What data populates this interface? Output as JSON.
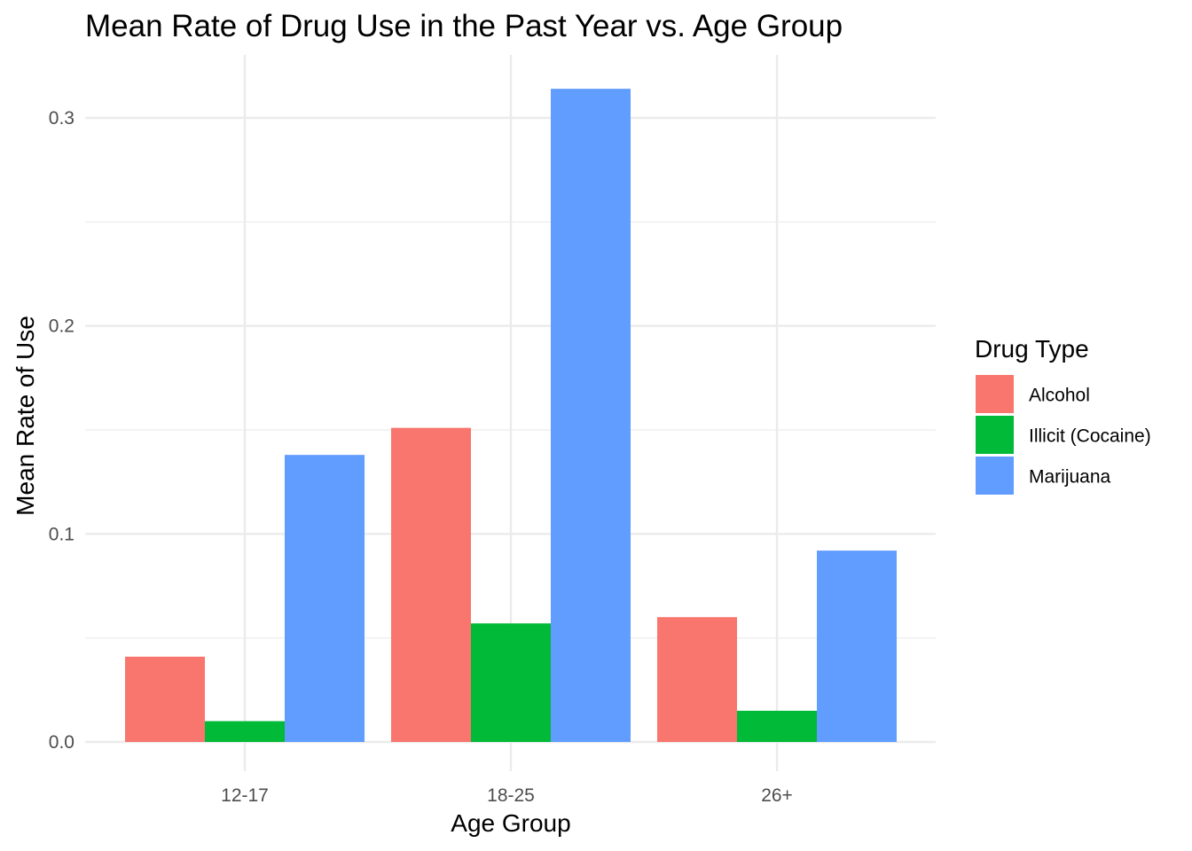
{
  "chart_data": {
    "type": "bar",
    "title": "Mean Rate of Drug Use in the Past Year vs. Age Group",
    "xlabel": "Age Group",
    "ylabel": "Mean Rate of Use",
    "categories": [
      "12-17",
      "18-25",
      "26+"
    ],
    "series": [
      {
        "name": "Alcohol",
        "color": "#F8766D",
        "values": [
          0.041,
          0.151,
          0.06
        ]
      },
      {
        "name": "Illicit (Cocaine)",
        "color": "#00BA38",
        "values": [
          0.01,
          0.057,
          0.015
        ]
      },
      {
        "name": "Marijuana",
        "color": "#619CFF",
        "values": [
          0.138,
          0.314,
          0.092
        ]
      }
    ],
    "ylim": [
      0,
      0.32
    ],
    "yticks": [
      0.0,
      0.1,
      0.2,
      0.3
    ],
    "ytick_labels": [
      "0.0",
      "0.1",
      "0.2",
      "0.3"
    ],
    "grid": true,
    "legend": {
      "title": "Drug Type",
      "position": "right"
    }
  }
}
